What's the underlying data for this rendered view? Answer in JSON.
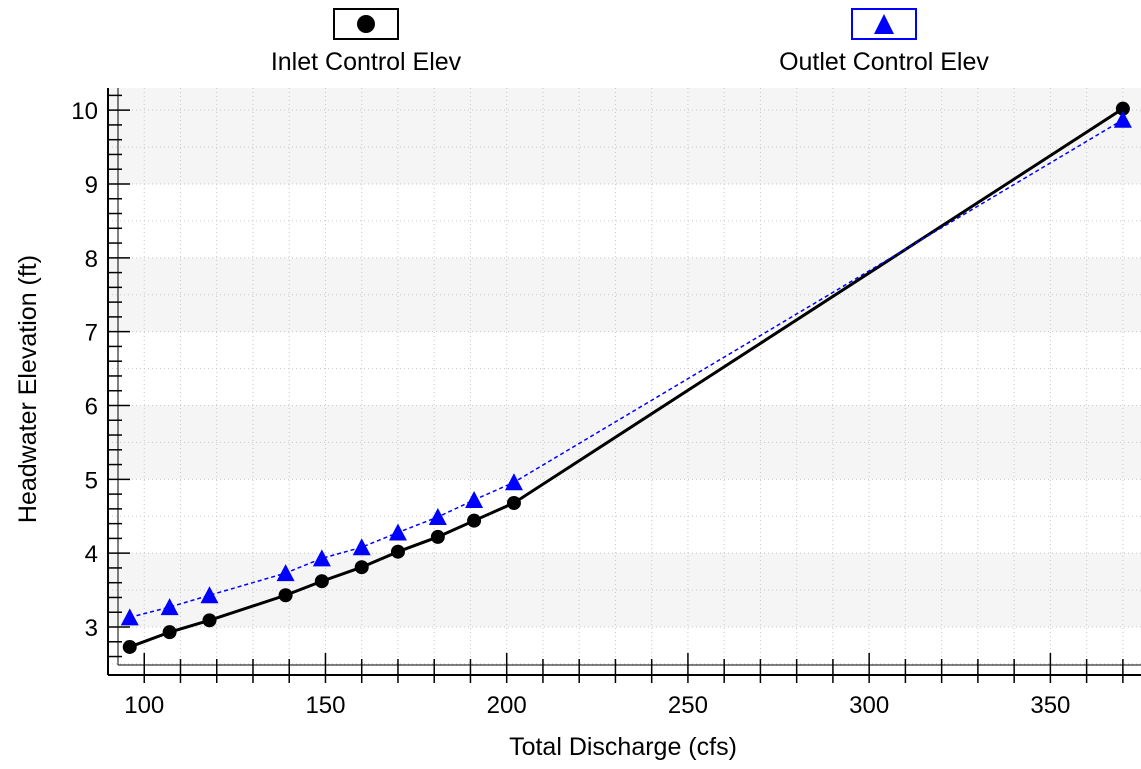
{
  "chart_data": {
    "type": "line",
    "xlabel": "Total Discharge (cfs)",
    "ylabel": "Headwater Elevation (ft)",
    "xlim": [
      90,
      375
    ],
    "ylim": [
      2.35,
      10.3
    ],
    "xticks": [
      "100",
      "150",
      "200",
      "250",
      "300",
      "350"
    ],
    "yticks": [
      "3",
      "4",
      "5",
      "6",
      "7",
      "8",
      "9",
      "10"
    ],
    "grid": true,
    "legend_position": "top",
    "series": [
      {
        "name": "Inlet Control Elev",
        "color": "#000000",
        "marker": "circle",
        "line": "solid",
        "x": [
          96,
          107,
          118,
          139,
          149,
          160,
          170,
          181,
          191,
          202,
          370
        ],
        "y": [
          2.73,
          2.93,
          3.09,
          3.43,
          3.62,
          3.81,
          4.02,
          4.22,
          4.44,
          4.68,
          10.02
        ]
      },
      {
        "name": "Outlet Control Elev",
        "color": "#0000ff",
        "marker": "triangle",
        "line": "dashed",
        "x": [
          96,
          107,
          118,
          139,
          149,
          160,
          170,
          181,
          191,
          202,
          370
        ],
        "y": [
          3.13,
          3.27,
          3.43,
          3.73,
          3.93,
          4.08,
          4.28,
          4.49,
          4.72,
          4.96,
          9.87
        ]
      }
    ]
  }
}
